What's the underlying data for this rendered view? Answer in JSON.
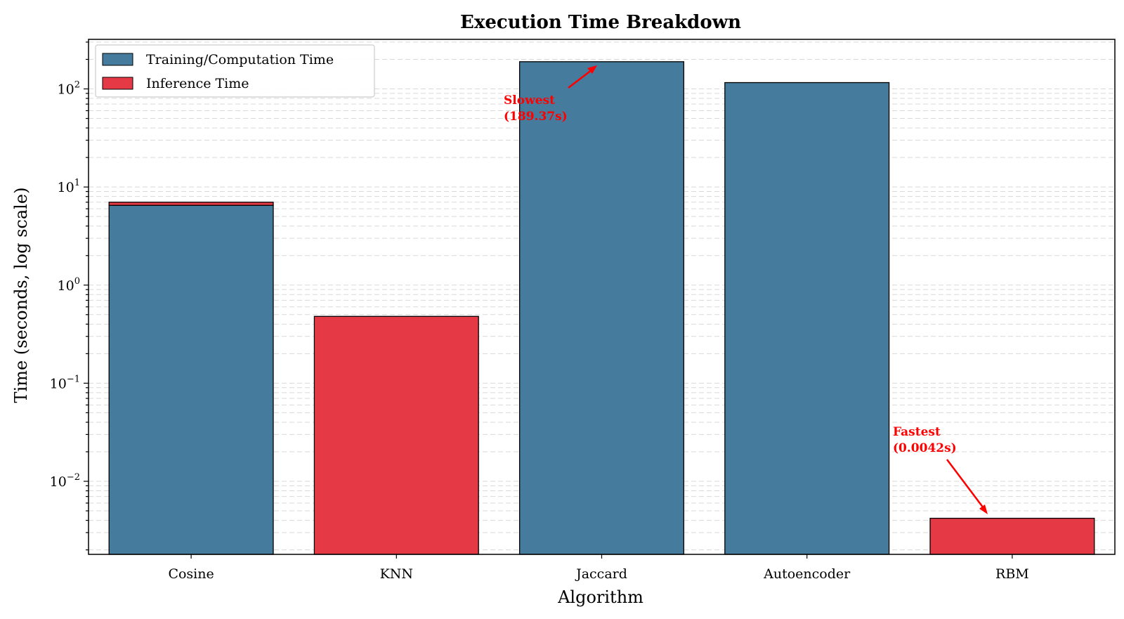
{
  "chart_data": {
    "type": "bar",
    "stacked": true,
    "title": "Execution Time Breakdown",
    "xlabel": "Algorithm",
    "ylabel": "Time (seconds, log scale)",
    "yscale": "log",
    "ylim": [
      0.0018,
      320
    ],
    "grid": true,
    "legend_position": "top-left",
    "categories": [
      "Cosine",
      "KNN",
      "Jaccard",
      "Autoencoder",
      "RBM"
    ],
    "series": [
      {
        "name": "Training/Computation Time",
        "color": "#457b9d",
        "values": [
          6.5,
          0,
          189.37,
          116,
          0
        ]
      },
      {
        "name": "Inference Time",
        "color": "#e63946",
        "values": [
          0.5,
          0.48,
          0,
          0,
          0.0042
        ]
      }
    ],
    "y_ticks": [
      {
        "base": "10",
        "exp": "−2",
        "value": 0.01
      },
      {
        "base": "10",
        "exp": "−1",
        "value": 0.1
      },
      {
        "base": "10",
        "exp": "0",
        "value": 1
      },
      {
        "base": "10",
        "exp": "1",
        "value": 10
      },
      {
        "base": "10",
        "exp": "2",
        "value": 100
      }
    ],
    "annotations": [
      {
        "line1": "Slowest",
        "line2": "(189.37s)",
        "category": "Jaccard",
        "value": 189.37,
        "color": "#ff0000"
      },
      {
        "line1": "Fastest",
        "line2": "(0.0042s)",
        "category": "RBM",
        "value": 0.0042,
        "color": "#ff0000"
      }
    ]
  }
}
